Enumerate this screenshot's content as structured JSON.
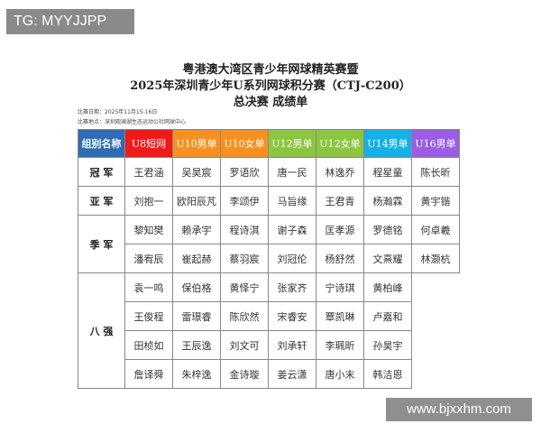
{
  "watermarks": {
    "top_left": "TG: MYYJJPP",
    "bottom_right": "www.bjxxhm.com"
  },
  "title": {
    "line1": "粤港澳大湾区青少年网球精英赛暨",
    "line2": "2025年深圳青少年U系列网球积分赛（CTJ-C200）",
    "line3": "总决赛  成绩单"
  },
  "meta": {
    "date": "比赛日期：2025年11月15-16日",
    "venue": "比赛地点：深圳观澜湖生态运动公社网球中心"
  },
  "table": {
    "headers": [
      {
        "label": "组别名称",
        "color": "#2e6db5"
      },
      {
        "label": "U8短网",
        "color": "#f01a1a"
      },
      {
        "label": "U10男单",
        "color": "#f7901e"
      },
      {
        "label": "U10女单",
        "color": "#f7901e"
      },
      {
        "label": "U12男单",
        "color": "#8cc63f"
      },
      {
        "label": "U12女单",
        "color": "#8cc63f"
      },
      {
        "label": "U14男单",
        "color": "#14b0e8"
      },
      {
        "label": "U16男单",
        "color": "#9b5de5"
      }
    ],
    "champion": {
      "label": "冠  军",
      "names": [
        "王君涵",
        "吴昊宸",
        "罗语欣",
        "唐一民",
        "林逸乔",
        "程星童",
        "陈长昕"
      ]
    },
    "runner_up": {
      "label": "亚  军",
      "names": [
        "刘抱一",
        "欧阳辰芃",
        "李颂伊",
        "马旨缘",
        "王君青",
        "杨瀚霖",
        "黄宇锴"
      ]
    },
    "third": {
      "label": "季  军",
      "rows": [
        [
          "黎知樊",
          "赖承宇",
          "程诗淇",
          "谢子森",
          "匡孝源",
          "罗德铭",
          "何卓羲"
        ],
        [
          "潘宥辰",
          "崔起赫",
          "蔡羽宸",
          "刘冠伦",
          "杨舒然",
          "文熹耀",
          "林灏杭"
        ]
      ]
    },
    "top8": {
      "label": "八  强",
      "rows": [
        [
          "袁一鸣",
          "保伯格",
          "黄怿宁",
          "张家齐",
          "宁诗琪",
          "黄柏峰"
        ],
        [
          "王俊程",
          "雷璟睿",
          "陈欣然",
          "宋睿安",
          "覃凯琳",
          "卢嘉和"
        ],
        [
          "田桢如",
          "王辰逸",
          "刘文可",
          "刘承轩",
          "李珮昕",
          "孙昊宇"
        ],
        [
          "詹译舜",
          "朱梓逸",
          "金诗璇",
          "姜云潇",
          "唐小末",
          "韩洁恩"
        ]
      ]
    }
  }
}
